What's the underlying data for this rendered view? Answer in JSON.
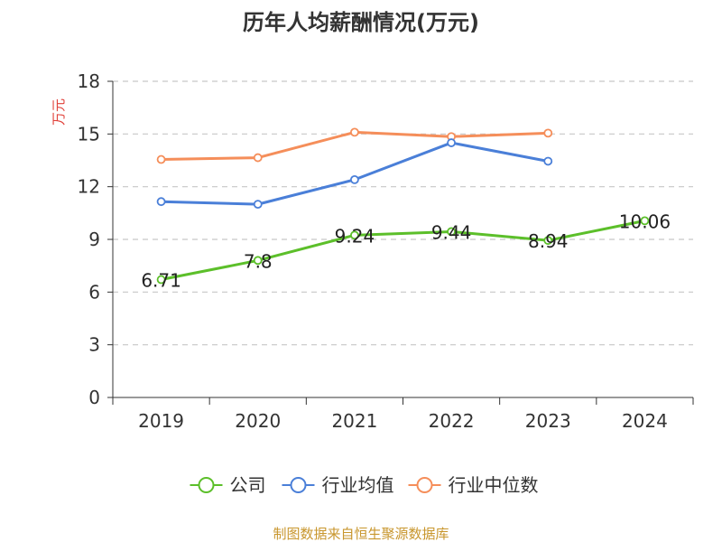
{
  "chart_data": {
    "type": "line",
    "title": "历年人均薪酬情况(万元)",
    "ylabel": "万元",
    "xlabel": "",
    "categories": [
      "2019",
      "2020",
      "2021",
      "2022",
      "2023",
      "2024"
    ],
    "ylim": [
      0,
      18
    ],
    "yticks": [
      0,
      3,
      6,
      9,
      12,
      15,
      18
    ],
    "grid": true,
    "legend_position": "bottom",
    "series": [
      {
        "name": "公司",
        "color": "#5cbf2a",
        "values": [
          6.71,
          7.8,
          9.24,
          9.44,
          8.94,
          10.06
        ],
        "labels": [
          "6.71",
          "7.8",
          "9.24",
          "9.44",
          "8.94",
          "10.06"
        ]
      },
      {
        "name": "行业均值",
        "color": "#4a7fd8",
        "values": [
          11.15,
          11.0,
          12.4,
          14.5,
          13.45,
          null
        ]
      },
      {
        "name": "行业中位数",
        "color": "#f58e5a",
        "values": [
          13.55,
          13.65,
          15.1,
          14.85,
          15.05,
          null
        ]
      }
    ],
    "source": "制图数据来自恒生聚源数据库",
    "source_color": "#c8962d",
    "ylabel_color": "#e0413a"
  }
}
